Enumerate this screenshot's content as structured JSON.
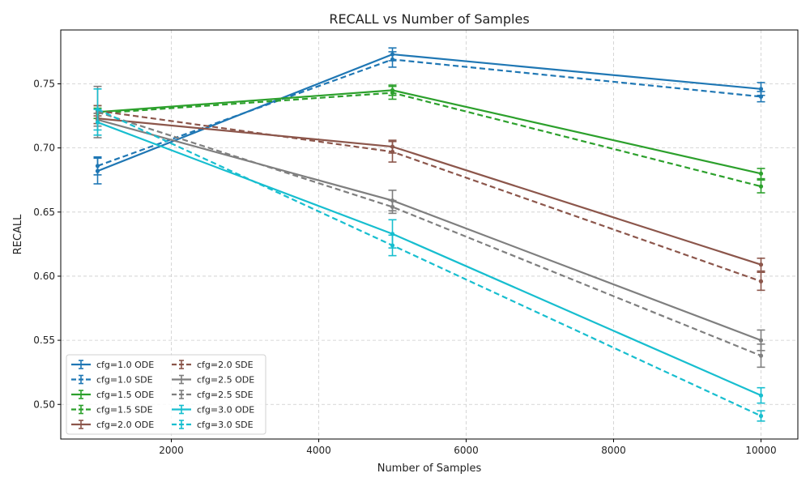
{
  "chart_data": {
    "type": "line",
    "title": "RECALL vs Number of Samples",
    "xlabel": "Number of Samples",
    "ylabel": "RECALL",
    "xlim": [
      500,
      10500
    ],
    "ylim": [
      0.473,
      0.792
    ],
    "x_ticks": [
      2000,
      4000,
      6000,
      8000,
      10000
    ],
    "y_ticks": [
      0.5,
      0.55,
      0.6,
      0.65,
      0.7,
      0.75
    ],
    "grid": true,
    "legend_placement": "lower-left",
    "x": [
      1000,
      5000,
      10000
    ],
    "series": [
      {
        "name": "cfg=1.0 ODE",
        "color": "#1f77b4",
        "dash": false,
        "values": [
          0.682,
          0.773,
          0.746
        ],
        "errors": [
          0.01,
          0.005,
          0.005
        ]
      },
      {
        "name": "cfg=1.0 SDE",
        "color": "#1f77b4",
        "dash": true,
        "values": [
          0.686,
          0.769,
          0.74
        ],
        "errors": [
          0.007,
          0.006,
          0.004
        ]
      },
      {
        "name": "cfg=1.5 ODE",
        "color": "#2ca02c",
        "dash": false,
        "values": [
          0.728,
          0.745,
          0.68
        ],
        "errors": [
          0.005,
          0.004,
          0.004
        ]
      },
      {
        "name": "cfg=1.5 SDE",
        "color": "#2ca02c",
        "dash": true,
        "values": [
          0.727,
          0.743,
          0.67
        ],
        "errors": [
          0.004,
          0.005,
          0.005
        ]
      },
      {
        "name": "cfg=2.0 ODE",
        "color": "#8c564b",
        "dash": false,
        "values": [
          0.723,
          0.701,
          0.609
        ],
        "errors": [
          0.004,
          0.005,
          0.005
        ]
      },
      {
        "name": "cfg=2.0 SDE",
        "color": "#8c564b",
        "dash": true,
        "values": [
          0.729,
          0.697,
          0.596
        ],
        "errors": [
          0.004,
          0.008,
          0.007
        ]
      },
      {
        "name": "cfg=2.5 ODE",
        "color": "#7f7f7f",
        "dash": false,
        "values": [
          0.722,
          0.659,
          0.55
        ],
        "errors": [
          0.005,
          0.008,
          0.008
        ]
      },
      {
        "name": "cfg=2.5 SDE",
        "color": "#7f7f7f",
        "dash": true,
        "values": [
          0.728,
          0.654,
          0.538
        ],
        "errors": [
          0.02,
          0.005,
          0.009
        ]
      },
      {
        "name": "cfg=3.0 ODE",
        "color": "#17becf",
        "dash": false,
        "values": [
          0.72,
          0.633,
          0.507
        ],
        "errors": [
          0.01,
          0.011,
          0.006
        ]
      },
      {
        "name": "cfg=3.0 SDE",
        "color": "#17becf",
        "dash": true,
        "values": [
          0.73,
          0.624,
          0.491
        ],
        "errors": [
          0.016,
          0.008,
          0.004
        ]
      }
    ]
  }
}
